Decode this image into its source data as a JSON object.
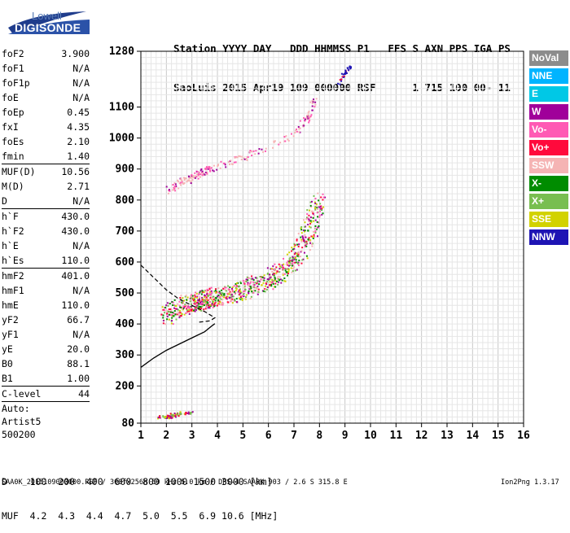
{
  "logo": {
    "top_text": "Lowell",
    "main_text": "DIGISONDE",
    "color": "#1f3c8c"
  },
  "header": {
    "line1": "Station YYYY DAY   DDD HHMMSS P1   FFS S AXN PPS IGA PS",
    "line2": "SaoLuis 2015 Apr19 109 000000 RSF      1 715 100 00- 11"
  },
  "params": [
    {
      "name": "foF2",
      "value": "3.900"
    },
    {
      "name": "foF1",
      "value": "N/A"
    },
    {
      "name": "foF1p",
      "value": "N/A"
    },
    {
      "name": "foE",
      "value": "N/A"
    },
    {
      "name": "foEp",
      "value": "0.45"
    },
    {
      "name": "fxI",
      "value": "4.35"
    },
    {
      "name": "foEs",
      "value": "2.10"
    },
    {
      "name": "fmin",
      "value": "1.40",
      "sep": true
    },
    {
      "name": "MUF(D)",
      "value": "10.56"
    },
    {
      "name": "M(D)",
      "value": "2.71"
    },
    {
      "name": "D",
      "value": "N/A",
      "sep": true
    },
    {
      "name": "h`F",
      "value": "430.0"
    },
    {
      "name": "h`F2",
      "value": "430.0"
    },
    {
      "name": "h`E",
      "value": "N/A"
    },
    {
      "name": "h`Es",
      "value": "110.0",
      "sep": true
    },
    {
      "name": "hmF2",
      "value": "401.0"
    },
    {
      "name": "hmF1",
      "value": "N/A"
    },
    {
      "name": "hmE",
      "value": "110.0"
    },
    {
      "name": "yF2",
      "value": "66.7"
    },
    {
      "name": "yF1",
      "value": "N/A"
    },
    {
      "name": "yE",
      "value": "20.0"
    },
    {
      "name": "B0",
      "value": "88.1"
    },
    {
      "name": "B1",
      "value": "1.00",
      "sep": true
    },
    {
      "name": "C-level",
      "value": "44",
      "sep": true
    }
  ],
  "autoscaling": {
    "line1": "Auto:",
    "line2": "Artist5",
    "line3": "500200"
  },
  "legend": [
    {
      "label": "NoVal",
      "color": "#8c8c8c"
    },
    {
      "label": "NNE",
      "color": "#00b4ff"
    },
    {
      "label": "E",
      "color": "#00c8e6"
    },
    {
      "label": "W",
      "color": "#a0009a"
    },
    {
      "label": "Vo-",
      "color": "#ff5ab4"
    },
    {
      "label": "Vo+",
      "color": "#ff0a3c"
    },
    {
      "label": "SSW",
      "color": "#f5b4b4"
    },
    {
      "label": "X-",
      "color": "#008c00"
    },
    {
      "label": "X+",
      "color": "#78be50"
    },
    {
      "label": "SSE",
      "color": "#d2d200"
    },
    {
      "label": "NNW",
      "color": "#1e14b4"
    }
  ],
  "bottom": {
    "d_row": "D    100  200  400  600  800 1000 1500 3000 [km]",
    "muf_row": "MUF  4.2  4.3  4.4  4.7  5.0  5.5  6.9 10.6 [MHz]",
    "footer_left": "SAA0K_2015109000000.RSF / 300fx256h 50 kHz 5.0 km / DPS-4 SAA0K 903 / 2.6 S 315.8 E",
    "footer_right": "Ion2Png 1.3.17"
  },
  "chart_data": {
    "type": "scatter",
    "title": "",
    "xlabel": "",
    "ylabel": "",
    "xlim": [
      1,
      16
    ],
    "ylim": [
      80,
      1280
    ],
    "x_ticks": [
      1,
      2,
      3,
      4,
      5,
      6,
      7,
      8,
      9,
      10,
      11,
      12,
      13,
      14,
      15,
      16
    ],
    "y_ticks": [
      80,
      200,
      300,
      400,
      500,
      600,
      700,
      800,
      900,
      1000,
      1100,
      1280
    ],
    "grid": true,
    "echo_traces": [
      {
        "name": "F-trace O-mode",
        "x": [
          1.9,
          2.3,
          2.8,
          3.2,
          3.6,
          4.0,
          4.5,
          5.0,
          5.5,
          6.0,
          6.5,
          7.0,
          7.4,
          7.7,
          7.9
        ],
        "y": [
          415,
          440,
          455,
          462,
          470,
          478,
          488,
          500,
          515,
          535,
          560,
          600,
          650,
          720,
          800
        ]
      },
      {
        "name": "F-trace multi-hop",
        "x": [
          2.0,
          2.5,
          3.0,
          3.5,
          4.0,
          5.0,
          6.0,
          7.0,
          7.5,
          7.8
        ],
        "y": [
          830,
          850,
          870,
          890,
          905,
          935,
          970,
          1010,
          1060,
          1120
        ]
      },
      {
        "name": "Es trace",
        "x": [
          1.8,
          2.0,
          2.2,
          2.5,
          3.0
        ],
        "y": [
          100,
          100,
          105,
          110,
          115
        ]
      },
      {
        "name": "NNW echoes",
        "x": [
          8.7,
          8.8,
          8.9,
          9.0,
          9.1,
          9.2
        ],
        "y": [
          1170,
          1185,
          1200,
          1210,
          1220,
          1230
        ]
      }
    ],
    "profile_curve": {
      "x": [
        1.0,
        1.5,
        2.0,
        2.5,
        3.0,
        3.5,
        3.8,
        3.9
      ],
      "y": [
        260,
        290,
        315,
        335,
        355,
        375,
        395,
        401
      ]
    },
    "dashed_curve": {
      "x": [
        1.0,
        1.5,
        2.0,
        2.5,
        3.0,
        3.5,
        3.9,
        3.7,
        3.2
      ],
      "y": [
        590,
        550,
        510,
        480,
        460,
        440,
        420,
        410,
        405
      ]
    }
  }
}
